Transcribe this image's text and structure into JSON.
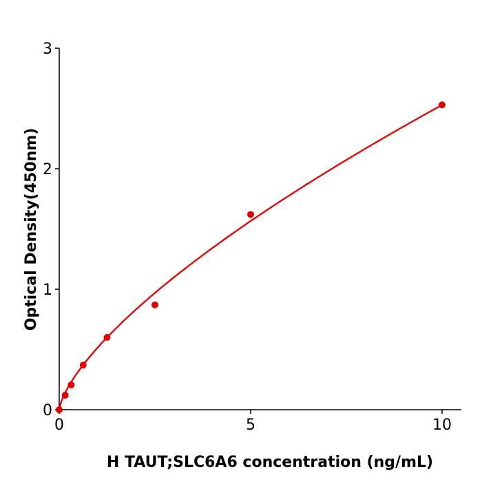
{
  "chart_data": {
    "type": "scatter",
    "title": "",
    "xlabel": "H  TAUT;SLC6A6 concentration (ng/mL)",
    "ylabel": "Optical Density(450nm)",
    "xlim": [
      0,
      10.5
    ],
    "ylim": [
      0,
      3
    ],
    "xticks": [
      0,
      5,
      10
    ],
    "yticks": [
      0,
      1,
      2,
      3
    ],
    "grid": false,
    "color": "#e00000",
    "curve_color": "#d81010",
    "points": [
      {
        "x": 0,
        "y": 0.0
      },
      {
        "x": 0.156,
        "y": 0.12
      },
      {
        "x": 0.3125,
        "y": 0.206
      },
      {
        "x": 0.625,
        "y": 0.37
      },
      {
        "x": 1.25,
        "y": 0.6
      },
      {
        "x": 2.5,
        "y": 0.87
      },
      {
        "x": 5,
        "y": 1.62
      },
      {
        "x": 10,
        "y": 2.53
      }
    ],
    "fitted_curve": true
  }
}
